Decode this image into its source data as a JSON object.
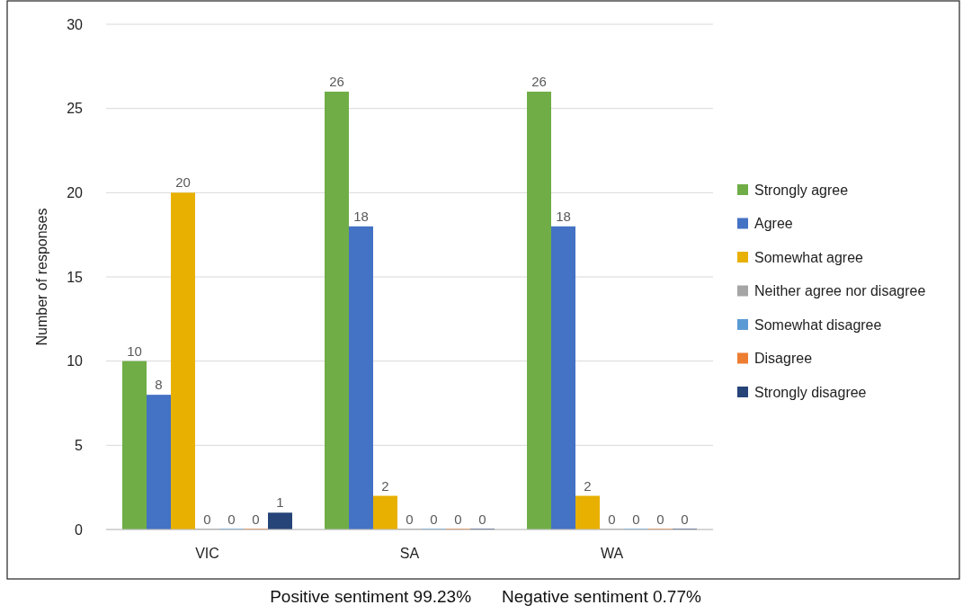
{
  "chart_data": {
    "type": "bar",
    "ylabel": "Number of responses",
    "categories": [
      "VIC",
      "SA",
      "WA"
    ],
    "series": [
      {
        "name": "Strongly agree",
        "color": "#70ad47",
        "values": [
          10,
          26,
          26
        ]
      },
      {
        "name": "Agree",
        "color": "#4472c4",
        "values": [
          8,
          18,
          18
        ]
      },
      {
        "name": "Somewhat agree",
        "color": "#e8b000",
        "values": [
          20,
          2,
          2
        ]
      },
      {
        "name": "Neither agree nor disagree",
        "color": "#a5a5a5",
        "values": [
          0,
          0,
          0
        ]
      },
      {
        "name": "Somewhat disagree",
        "color": "#5b9bd5",
        "values": [
          0,
          0,
          0
        ]
      },
      {
        "name": "Disagree",
        "color": "#ed7d31",
        "values": [
          0,
          0,
          0
        ]
      },
      {
        "name": "Strongly disagree",
        "color": "#264478",
        "values": [
          1,
          0,
          0
        ]
      }
    ],
    "ylim": [
      0,
      30
    ],
    "yticks": [
      0,
      5,
      10,
      15,
      20,
      25,
      30
    ],
    "grid": "y",
    "legend": "right",
    "data_labels": true,
    "annotations": [
      "Positive sentiment 99.23%",
      "Negative sentiment 0.77%"
    ]
  }
}
